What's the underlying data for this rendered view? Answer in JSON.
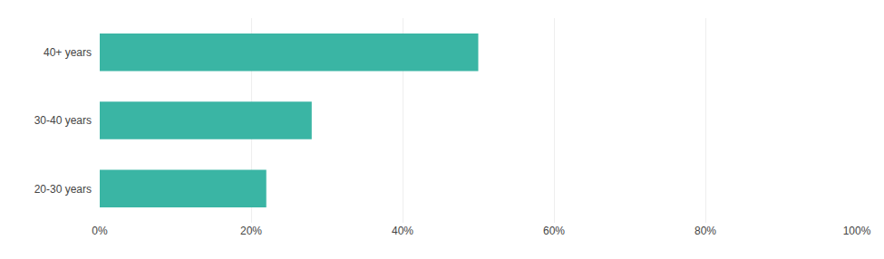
{
  "chart_data": {
    "type": "bar",
    "orientation": "horizontal",
    "categories": [
      "20-30 years",
      "30-40 years",
      "40+ years"
    ],
    "values": [
      22,
      28,
      50
    ],
    "color": "#3ab5a4",
    "xlim": [
      0,
      100
    ],
    "xticks": [
      {
        "value": 0,
        "label": "0%"
      },
      {
        "value": 20,
        "label": "20%"
      },
      {
        "value": 40,
        "label": "40%"
      },
      {
        "value": 60,
        "label": "60%"
      },
      {
        "value": 80,
        "label": "80%"
      },
      {
        "value": 100,
        "label": "100%"
      }
    ],
    "grid": true
  }
}
